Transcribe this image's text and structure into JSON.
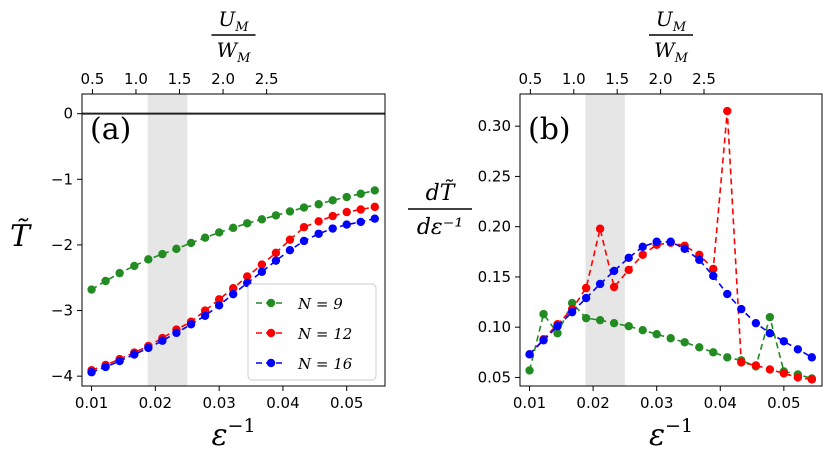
{
  "chart_data": [
    {
      "type": "line",
      "panel_label": "(a)",
      "ylabel": "T̃",
      "xlabel_base": "ε",
      "xlabel_exp": "−1",
      "top_xlabel_num": "U",
      "top_xlabel_num_sub": "M",
      "top_xlabel_den": "W",
      "top_xlabel_den_sub": "M",
      "xlim": [
        0.0085,
        0.056
      ],
      "ylim": [
        -4.15,
        0.3
      ],
      "xticks": [
        0.01,
        0.02,
        0.03,
        0.04,
        0.05
      ],
      "xticklabels": [
        "0.01",
        "0.02",
        "0.03",
        "0.04",
        "0.05"
      ],
      "yticks": [
        0,
        -1,
        -2,
        -3,
        -4
      ],
      "yticklabels": [
        "0",
        "−1",
        "−2",
        "−3",
        "−4"
      ],
      "top_ticks": [
        0.5,
        1.0,
        1.5,
        2.0,
        2.5
      ],
      "top_ticklabels": [
        "0.5",
        "1.0",
        "1.5",
        "2.0",
        "2.5"
      ],
      "shaded_region": [
        0.0188,
        0.025
      ],
      "hline": 0,
      "legend": "lower-right",
      "series": [
        {
          "name": "N = 9",
          "color": "#228b22",
          "x": [
            0.01,
            0.0122,
            0.0144,
            0.0167,
            0.0189,
            0.0211,
            0.0233,
            0.0256,
            0.0278,
            0.03,
            0.0322,
            0.0344,
            0.0367,
            0.0389,
            0.0411,
            0.0433,
            0.0456,
            0.0478,
            0.05,
            0.0522,
            0.0544
          ],
          "y": [
            -2.68,
            -2.55,
            -2.43,
            -2.32,
            -2.22,
            -2.14,
            -2.06,
            -1.97,
            -1.89,
            -1.81,
            -1.74,
            -1.67,
            -1.61,
            -1.55,
            -1.49,
            -1.43,
            -1.38,
            -1.32,
            -1.27,
            -1.22,
            -1.17
          ]
        },
        {
          "name": "N = 12",
          "color": "#ff0000",
          "x": [
            0.01,
            0.0122,
            0.0144,
            0.0167,
            0.0189,
            0.0211,
            0.0233,
            0.0256,
            0.0278,
            0.03,
            0.0322,
            0.0344,
            0.0367,
            0.0389,
            0.0411,
            0.0433,
            0.0456,
            0.0478,
            0.05,
            0.0522,
            0.0544
          ],
          "y": [
            -3.91,
            -3.83,
            -3.74,
            -3.64,
            -3.54,
            -3.42,
            -3.29,
            -3.17,
            -3.0,
            -2.83,
            -2.66,
            -2.48,
            -2.3,
            -2.12,
            -1.92,
            -1.73,
            -1.64,
            -1.56,
            -1.5,
            -1.46,
            -1.42
          ]
        },
        {
          "name": "N = 16",
          "color": "#0000ff",
          "x": [
            0.01,
            0.0122,
            0.0144,
            0.0167,
            0.0189,
            0.0211,
            0.0233,
            0.0256,
            0.0278,
            0.03,
            0.0322,
            0.0344,
            0.0367,
            0.0389,
            0.0411,
            0.0433,
            0.0456,
            0.0478,
            0.05,
            0.0522,
            0.0544
          ],
          "y": [
            -3.94,
            -3.86,
            -3.77,
            -3.67,
            -3.57,
            -3.46,
            -3.34,
            -3.21,
            -3.08,
            -2.92,
            -2.75,
            -2.58,
            -2.41,
            -2.24,
            -2.08,
            -1.94,
            -1.83,
            -1.75,
            -1.69,
            -1.65,
            -1.6
          ]
        }
      ]
    },
    {
      "type": "line",
      "panel_label": "(b)",
      "ylabel_num": "dT̃",
      "ylabel_den": "dε⁻¹",
      "xlabel_base": "ε",
      "xlabel_exp": "−1",
      "top_xlabel_num": "U",
      "top_xlabel_num_sub": "M",
      "top_xlabel_den": "W",
      "top_xlabel_den_sub": "M",
      "xlim": [
        0.0085,
        0.056
      ],
      "ylim": [
        0.0415,
        0.332
      ],
      "xticks": [
        0.01,
        0.02,
        0.03,
        0.04,
        0.05
      ],
      "xticklabels": [
        "0.01",
        "0.02",
        "0.03",
        "0.04",
        "0.05"
      ],
      "yticks": [
        0.05,
        0.1,
        0.15,
        0.2,
        0.25,
        0.3
      ],
      "yticklabels": [
        "0.05",
        "0.10",
        "0.15",
        "0.20",
        "0.25",
        "0.30"
      ],
      "top_ticks": [
        0.5,
        1.0,
        1.5,
        2.0,
        2.5
      ],
      "top_ticklabels": [
        "0.5",
        "1.0",
        "1.5",
        "2.0",
        "2.5"
      ],
      "shaded_region": [
        0.0188,
        0.025
      ],
      "series": [
        {
          "name": "N = 9",
          "color": "#228b22",
          "x": [
            0.01,
            0.0122,
            0.0144,
            0.0167,
            0.0189,
            0.0211,
            0.0233,
            0.0256,
            0.0278,
            0.03,
            0.0322,
            0.0344,
            0.0367,
            0.0389,
            0.0411,
            0.0433,
            0.0456,
            0.0478,
            0.05,
            0.0522,
            0.0544
          ],
          "y": [
            0.057,
            0.113,
            0.094,
            0.124,
            0.109,
            0.107,
            0.104,
            0.101,
            0.097,
            0.093,
            0.089,
            0.085,
            0.08,
            0.075,
            0.07,
            0.067,
            0.061,
            0.11,
            0.056,
            0.053,
            0.049
          ]
        },
        {
          "name": "N = 12",
          "color": "#ff0000",
          "x": [
            0.01,
            0.0122,
            0.0144,
            0.0167,
            0.0189,
            0.0211,
            0.0233,
            0.0256,
            0.0278,
            0.03,
            0.0322,
            0.0344,
            0.0367,
            0.0389,
            0.0411,
            0.0433,
            0.0456,
            0.0478,
            0.05,
            0.0522,
            0.0544
          ],
          "y": [
            0.073,
            0.088,
            0.103,
            0.118,
            0.139,
            0.198,
            0.14,
            0.157,
            0.172,
            0.182,
            0.184,
            0.181,
            0.172,
            0.158,
            0.315,
            0.065,
            0.062,
            0.058,
            0.054,
            0.05,
            0.048
          ]
        },
        {
          "name": "N = 16",
          "color": "#0000ff",
          "x": [
            0.01,
            0.0122,
            0.0144,
            0.0167,
            0.0189,
            0.0211,
            0.0233,
            0.0256,
            0.0278,
            0.03,
            0.0322,
            0.0344,
            0.0367,
            0.0389,
            0.0411,
            0.0433,
            0.0456,
            0.0478,
            0.05,
            0.0522,
            0.0544
          ],
          "y": [
            0.073,
            0.087,
            0.101,
            0.115,
            0.129,
            0.143,
            0.156,
            0.169,
            0.18,
            0.185,
            0.185,
            0.178,
            0.167,
            0.151,
            0.133,
            0.118,
            0.104,
            0.094,
            0.086,
            0.078,
            0.07
          ]
        }
      ]
    }
  ]
}
